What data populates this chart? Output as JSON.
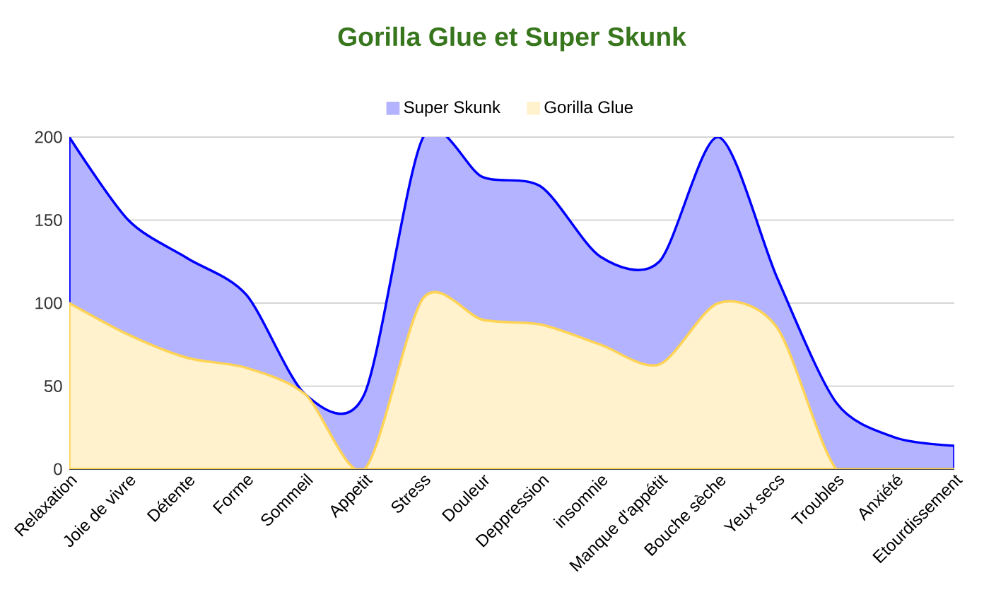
{
  "chart_data": {
    "type": "area",
    "title": "Gorilla Glue et Super Skunk",
    "categories": [
      "Relaxation",
      "Joie de vivre",
      "Détente",
      "Forme",
      "Sommeil",
      "Appetit",
      "Stress",
      "Douleur",
      "Deppression",
      "insomnie",
      "Manque d'appétit",
      "Bouche sèche",
      "Yeux secs",
      "Troubles",
      "Anxiété",
      "Etourdissement"
    ],
    "series": [
      {
        "name": "Super Skunk",
        "color": "#b3b3ff",
        "values": [
          200,
          150,
          127,
          105,
          45,
          45,
          200,
          176,
          170,
          128,
          125,
          200,
          115,
          40,
          19,
          14
        ]
      },
      {
        "name": "Gorilla Glue",
        "color": "#fff2cc",
        "values": [
          100,
          81,
          67,
          61,
          45,
          0,
          103,
          90,
          87,
          75,
          63,
          100,
          85,
          0,
          0,
          0
        ]
      }
    ],
    "ylim": [
      0,
      200
    ],
    "yticks": [
      0,
      50,
      100,
      150,
      200
    ],
    "grid": "y",
    "legend": "top"
  }
}
